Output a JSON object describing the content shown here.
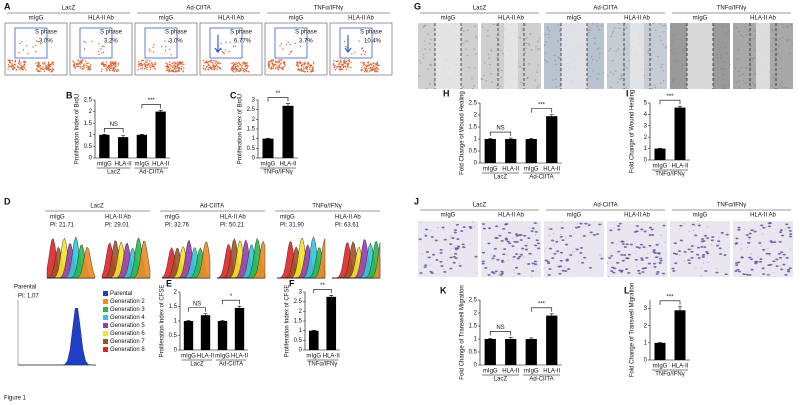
{
  "figure_label": "Figure 1",
  "A": {
    "label": "A",
    "groups": [
      {
        "name": "LacZ",
        "conditions": [
          "mIgG",
          "HLA-II Ab"
        ]
      },
      {
        "name": "Ad-CIITA",
        "conditions": [
          "mIgG",
          "HLA-II Ab"
        ]
      },
      {
        "name": "TNFα/IFNγ",
        "conditions": [
          "mIgG",
          "HLA-II Ab"
        ]
      }
    ],
    "plots": [
      {
        "title": "S phase",
        "value": "3.0%"
      },
      {
        "title": "S phase",
        "value": "3.2%"
      },
      {
        "title": "S phase",
        "value": "3.0%"
      },
      {
        "title": "S phase",
        "value": "6.77%"
      },
      {
        "title": "S phase",
        "value": "3.7%"
      },
      {
        "title": "S phase",
        "value": "10.4%"
      }
    ]
  },
  "B": {
    "label": "B",
    "type": "bar",
    "ylabel": "Proliferation Index of BrdU",
    "ylim": [
      0,
      2.5
    ],
    "yticks": [
      0,
      0.5,
      1,
      1.5,
      2,
      2.5
    ],
    "categories": [
      "mIgG",
      "HLA-II",
      "mIgG",
      "HLA-II"
    ],
    "values": [
      1,
      0.9,
      1,
      2.0
    ],
    "errors": [
      0.02,
      0.07,
      0.02,
      0.05
    ],
    "groups": [
      {
        "name": "LacZ",
        "sig": "NS"
      },
      {
        "name": "Ad-CIITA",
        "sig": "***"
      }
    ]
  },
  "C": {
    "label": "C",
    "type": "bar",
    "ylabel": "Proliferation Index of BrdU",
    "ylim": [
      0,
      3
    ],
    "yticks": [
      0,
      0.5,
      1,
      1.5,
      2,
      2.5,
      3
    ],
    "categories": [
      "mIgG",
      "HLA-II"
    ],
    "values": [
      1,
      2.7
    ],
    "errors": [
      0.02,
      0.12
    ],
    "groups": [
      {
        "name": "TNFα/IFNγ",
        "sig": "**"
      }
    ]
  },
  "D": {
    "label": "D",
    "groups": [
      {
        "name": "LacZ",
        "samples": [
          {
            "name": "mIgG",
            "pi": "PI: 21.71"
          },
          {
            "name": "HLA-II Ab",
            "pi": "PI: 29.01"
          }
        ]
      },
      {
        "name": "Ad-CIITA",
        "samples": [
          {
            "name": "mIgG",
            "pi": "PI: 32.76"
          },
          {
            "name": "HLA-II Ab",
            "pi": "PI: 50.21"
          }
        ]
      },
      {
        "name": "TNFα/IFNγ",
        "samples": [
          {
            "name": "mIgG",
            "pi": "PI: 31.90"
          },
          {
            "name": "HLA-II Ab",
            "pi": "PI: 63.61"
          }
        ]
      }
    ],
    "parental": {
      "name": "Parental",
      "pi": "PI: 1.07"
    },
    "legend": [
      {
        "name": "Parental",
        "color": "#1f3fc8"
      },
      {
        "name": "Generation 2",
        "color": "#f08a24"
      },
      {
        "name": "Generation 3",
        "color": "#28b848"
      },
      {
        "name": "Generation 4",
        "color": "#30c8d8"
      },
      {
        "name": "Generation 5",
        "color": "#9a3ab0"
      },
      {
        "name": "Generation 6",
        "color": "#f2e424"
      },
      {
        "name": "Generation 7",
        "color": "#a0522d"
      },
      {
        "name": "Generation 8",
        "color": "#e02424"
      }
    ]
  },
  "E": {
    "label": "E",
    "type": "bar",
    "ylabel": "Proliferation Index of CFSE",
    "ylim": [
      0,
      2
    ],
    "yticks": [
      0,
      0.5,
      1,
      1.5,
      2
    ],
    "categories": [
      "mIgG",
      "HLA-II",
      "mIgG",
      "HLA-II"
    ],
    "values": [
      1,
      1.2,
      1,
      1.45
    ],
    "errors": [
      0.02,
      0.05,
      0.02,
      0.06
    ],
    "groups": [
      {
        "name": "LacZ",
        "sig": "NS"
      },
      {
        "name": "Ad-CIITA",
        "sig": "*"
      }
    ]
  },
  "F": {
    "label": "F",
    "type": "bar",
    "ylabel": "Proliferation Index of CFSE",
    "ylim": [
      0,
      3
    ],
    "yticks": [
      0,
      0.5,
      1,
      1.5,
      2,
      2.5,
      3
    ],
    "categories": [
      "mIgG",
      "HLA-II"
    ],
    "values": [
      1,
      2.75
    ],
    "errors": [
      0.02,
      0.08
    ],
    "groups": [
      {
        "name": "TNFα/IFNγ",
        "sig": "**"
      }
    ]
  },
  "G": {
    "label": "G",
    "groups": [
      {
        "name": "LacZ",
        "conditions": [
          "mIgG",
          "HLA-II Ab"
        ]
      },
      {
        "name": "Ad-CIITA",
        "conditions": [
          "mIgG",
          "HLA-II Ab"
        ]
      },
      {
        "name": "TNFα/IFNγ",
        "conditions": [
          "mIgG",
          "HLA-II Ab"
        ]
      }
    ]
  },
  "H": {
    "label": "H",
    "type": "bar",
    "ylabel": "Fold Change of Wound Healing",
    "ylim": [
      0,
      2.5
    ],
    "yticks": [
      0,
      0.5,
      1,
      1.5,
      2,
      2.5
    ],
    "categories": [
      "mIgG",
      "HLA-II",
      "mIgG",
      "HLA-II"
    ],
    "values": [
      1,
      1.0,
      1,
      1.95
    ],
    "errors": [
      0.02,
      0.04,
      0.02,
      0.06
    ],
    "groups": [
      {
        "name": "LacZ",
        "sig": "NS"
      },
      {
        "name": "Ad-CIITA",
        "sig": "***"
      }
    ]
  },
  "I": {
    "label": "I",
    "type": "bar",
    "ylabel": "Fold Change of Wound Healing",
    "ylim": [
      0,
      5
    ],
    "yticks": [
      0,
      1,
      2,
      3,
      4,
      5
    ],
    "categories": [
      "mIgG",
      "HLA-II"
    ],
    "values": [
      1,
      4.6
    ],
    "errors": [
      0.03,
      0.12
    ],
    "groups": [
      {
        "name": "TNFα/IFNγ",
        "sig": "***"
      }
    ]
  },
  "J": {
    "label": "J",
    "groups": [
      {
        "name": "LacZ",
        "conditions": [
          "mIgG",
          "HLA-II Ab"
        ]
      },
      {
        "name": "Ad-CIITA",
        "conditions": [
          "mIgG",
          "HLA-II Ab"
        ]
      },
      {
        "name": "TNFα/IFNγ",
        "conditions": [
          "mIgG",
          "HLA-II Ab"
        ]
      }
    ]
  },
  "K": {
    "label": "K",
    "type": "bar",
    "ylabel": "Fold Change of Transwell Migration",
    "ylim": [
      0,
      2.5
    ],
    "yticks": [
      0,
      0.5,
      1,
      1.5,
      2,
      2.5
    ],
    "categories": [
      "mIgG",
      "HLA-II",
      "mIgG",
      "HLA-II"
    ],
    "values": [
      1,
      1.0,
      1,
      1.9
    ],
    "errors": [
      0.02,
      0.06,
      0.04,
      0.07
    ],
    "groups": [
      {
        "name": "LacZ",
        "sig": "NS"
      },
      {
        "name": "Ad-CIITA",
        "sig": "***"
      }
    ]
  },
  "L": {
    "label": "L",
    "type": "bar",
    "ylabel": "Fold Change of Transwell Migration",
    "ylim": [
      0,
      3.5
    ],
    "yticks": [
      0,
      1,
      2,
      3
    ],
    "categories": [
      "mIgG",
      "HLA-II"
    ],
    "values": [
      1,
      2.9
    ],
    "errors": [
      0.02,
      0.2
    ],
    "groups": [
      {
        "name": "TNFα/IFNγ",
        "sig": "***"
      }
    ]
  }
}
